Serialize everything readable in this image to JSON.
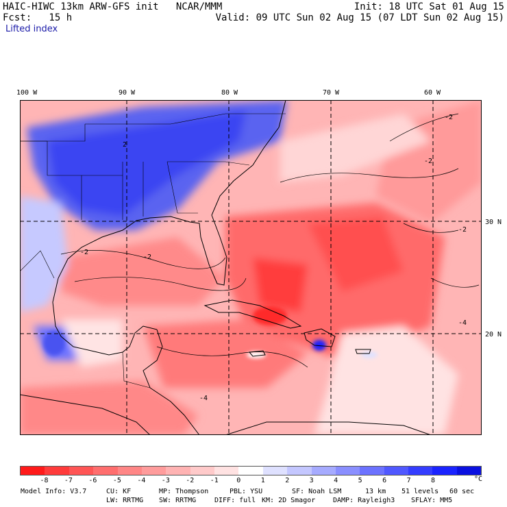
{
  "header": {
    "line1_left": "HAIC-HIWC 13km ARW-GFS init   NCAR/MMM",
    "line1_right": "Init: 18 UTC Sat 01 Aug 15",
    "line2_left": "Fcst:   15 h",
    "line2_right": "Valid: 09 UTC Sun 02 Aug 15 (07 LDT Sun 02 Aug 15)",
    "field": "Lifted index"
  },
  "map": {
    "lon_labels": [
      "100 W",
      "90 W",
      "80 W",
      "70 W",
      "60 W"
    ],
    "lat_labels": [
      "30 N",
      "20 N"
    ],
    "contour_labels": [
      "-2",
      "-2",
      "-2",
      "-2",
      "-2",
      "-4",
      "-4",
      "2"
    ]
  },
  "colorbar": {
    "colors": [
      "#ff1a1a",
      "#ff3b3b",
      "#ff5555",
      "#ff6e6e",
      "#ff8686",
      "#ff9c9c",
      "#ffb3b3",
      "#ffcaca",
      "#ffe2e2",
      "#ffffff",
      "#dfe1ff",
      "#c4c7ff",
      "#a6abff",
      "#8a8fff",
      "#6c72ff",
      "#5058ff",
      "#343dff",
      "#1a23ff",
      "#0a10e0"
    ],
    "labels": [
      "-8",
      "-7",
      "-6",
      "-5",
      "-4",
      "-3",
      "-2",
      "-1",
      "0",
      "1",
      "2",
      "3",
      "4",
      "5",
      "6",
      "7",
      "8"
    ],
    "unit": "°C"
  },
  "footer": {
    "model_info": "Model Info: V3.7",
    "cu": "CU: KF",
    "mp": "MP: Thompson",
    "pbl": "PBL: YSU",
    "sf": "SF: Noah LSM",
    "res": "13 km",
    "levels": "51 levels",
    "dt": "60 sec",
    "lw": "LW: RRTMG",
    "sw": "SW: RRTMG",
    "diff": "DIFF: full",
    "km": "KM: 2D Smagor",
    "damp": "DAMP: Rayleigh3",
    "sflay": "SFLAY: MM5"
  }
}
